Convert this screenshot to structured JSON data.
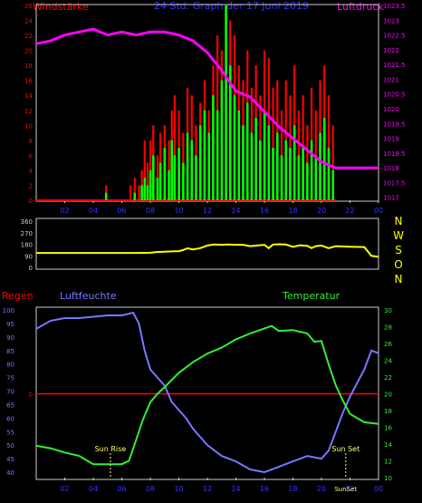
{
  "header": {
    "left_title": "Windstärke",
    "center_title": "24 Std. Graph der 17 Juni 2019",
    "right_title": "Luftdruck"
  },
  "lower_header": {
    "rain_label": "Regen",
    "humidity_label": "Luftfeuchte",
    "temperature_label": "Temperatur"
  },
  "annotations": {
    "sunrise": "Sun Rise",
    "sunset": "Sun Set",
    "sunset_tick": "SunSet"
  },
  "colors": {
    "wind_bar_gust": "#ff0000",
    "wind_bar_avg": "#00ff00",
    "pressure": "#ff00ff",
    "direction": "#ffff00",
    "humidity": "#7777ff",
    "temperature": "#33ee33",
    "rain": "#ff0000",
    "left_axis_text": "#ff0000",
    "right_axis_text": "#ff00ff",
    "humidity_axis_text": "#7777ff",
    "temperature_axis_text": "#33ee33",
    "x_axis_text": "#3333ff",
    "header_center": "#3333ff",
    "compass_text": "#ffff00"
  },
  "chart_data": [
    {
      "type": "bar",
      "name": "wind-and-pressure",
      "x_tick_labels": [
        "02",
        "04",
        "06",
        "08",
        "10",
        "12",
        "14",
        "16",
        "18",
        "20",
        "22",
        "00"
      ],
      "x_range_hours": [
        0,
        24
      ],
      "left_axis": {
        "label": "Windstärke",
        "ticks": [
          0,
          2,
          4,
          6,
          8,
          10,
          12,
          14,
          16,
          18,
          20,
          22,
          24,
          26
        ],
        "range": [
          0,
          26
        ]
      },
      "right_axis": {
        "label": "Luftdruck",
        "ticks": [
          1017,
          1017.5,
          1018,
          1018.5,
          1019,
          1019.5,
          1020,
          1020.5,
          1021,
          1021.5,
          1022,
          1022.5,
          1023,
          1023.5
        ],
        "range": [
          1016.9,
          1023.5
        ]
      },
      "wind_gust": {
        "hours": [
          4.9,
          6.6,
          6.9,
          7.2,
          7.4,
          7.6,
          7.8,
          8.0,
          8.2,
          8.5,
          8.7,
          9.0,
          9.3,
          9.5,
          9.7,
          10.0,
          10.3,
          10.6,
          10.9,
          11.2,
          11.5,
          11.8,
          12.1,
          12.4,
          12.7,
          13.0,
          13.3,
          13.6,
          13.9,
          14.2,
          14.5,
          14.8,
          15.1,
          15.4,
          15.7,
          16.0,
          16.3,
          16.6,
          16.9,
          17.2,
          17.5,
          17.8,
          18.1,
          18.4,
          18.7,
          19.0,
          19.3,
          19.6,
          19.9,
          20.2,
          20.5,
          20.8
        ],
        "values": [
          2,
          2,
          3,
          2,
          4,
          8,
          5,
          8,
          10,
          6,
          9,
          10,
          8,
          12,
          14,
          12,
          9,
          15,
          14,
          10,
          13,
          16,
          12,
          18,
          22,
          20,
          26,
          24,
          22,
          18,
          16,
          20,
          15,
          18,
          14,
          20,
          19,
          15,
          16,
          12,
          16,
          14,
          18,
          12,
          14,
          10,
          15,
          12,
          16,
          18,
          14,
          10
        ]
      },
      "wind_avg": {
        "hours": [
          4.9,
          6.9,
          7.4,
          7.6,
          7.8,
          8.0,
          8.2,
          8.5,
          8.7,
          9.0,
          9.3,
          9.5,
          9.7,
          10.0,
          10.3,
          10.6,
          10.9,
          11.2,
          11.5,
          11.8,
          12.1,
          12.4,
          12.7,
          13.0,
          13.3,
          13.6,
          13.9,
          14.2,
          14.5,
          14.8,
          15.1,
          15.4,
          15.7,
          16.0,
          16.3,
          16.6,
          16.9,
          17.2,
          17.5,
          17.8,
          18.1,
          18.4,
          18.7,
          19.0,
          19.3,
          19.6,
          19.9,
          20.2,
          20.5,
          20.8
        ],
        "values": [
          1,
          1,
          2,
          3,
          2,
          4,
          6,
          3,
          5,
          7,
          4,
          8,
          6,
          7,
          5,
          9,
          8,
          6,
          10,
          12,
          9,
          14,
          12,
          16,
          26,
          18,
          14,
          12,
          10,
          13,
          9,
          11,
          8,
          12,
          10,
          7,
          9,
          6,
          8,
          7,
          10,
          6,
          7,
          5,
          8,
          6,
          9,
          11,
          7,
          4
        ]
      },
      "pressure": {
        "hours": [
          0,
          1,
          2,
          3,
          4,
          5,
          6,
          7,
          8,
          9,
          10,
          11,
          12,
          13,
          14,
          15,
          16,
          17,
          18,
          19,
          20,
          21,
          22,
          23,
          24
        ],
        "values": [
          1022.2,
          1022.3,
          1022.5,
          1022.6,
          1022.7,
          1022.5,
          1022.6,
          1022.5,
          1022.6,
          1022.6,
          1022.5,
          1022.3,
          1021.9,
          1021.3,
          1020.6,
          1020.4,
          1019.9,
          1019.4,
          1019.0,
          1018.6,
          1018.2,
          1018.0,
          1018.0,
          1018.0,
          1018.0
        ]
      }
    },
    {
      "type": "line",
      "name": "wind-direction",
      "left_axis": {
        "ticks": [
          0,
          90,
          180,
          270,
          360
        ],
        "range": [
          0,
          360
        ]
      },
      "compass_labels": [
        "N",
        "W",
        "S",
        "O",
        "N"
      ],
      "hours": [
        0,
        2,
        4,
        6,
        7,
        8,
        8.5,
        9,
        9.5,
        10,
        10.3,
        10.6,
        11,
        11.5,
        12,
        12.5,
        13,
        13.5,
        14,
        14.5,
        15,
        15.5,
        16,
        16.3,
        16.6,
        17,
        17.5,
        18,
        18.5,
        19,
        19.3,
        19.6,
        20,
        20.5,
        21,
        22,
        23,
        23.5,
        24
      ],
      "values": [
        112,
        112,
        112,
        112,
        112,
        114,
        120,
        122,
        124,
        126,
        135,
        148,
        140,
        150,
        170,
        178,
        176,
        178,
        176,
        176,
        165,
        170,
        176,
        150,
        178,
        180,
        178,
        160,
        172,
        168,
        150,
        165,
        170,
        150,
        165,
        160,
        158,
        90,
        82
      ]
    },
    {
      "type": "line",
      "name": "humidity-temperature",
      "left_axis": {
        "label": "Luftfeuchte",
        "ticks": [
          40,
          45,
          50,
          55,
          60,
          65,
          70,
          75,
          80,
          85,
          90,
          95,
          100
        ],
        "range": [
          38,
          100
        ]
      },
      "right_axis": {
        "label": "Temperatur",
        "ticks": [
          10,
          12,
          14,
          16,
          18,
          20,
          22,
          24,
          26,
          28,
          30
        ],
        "range": [
          10,
          30
        ]
      },
      "rain": {
        "label": "Regen",
        "value": 0
      },
      "humidity": {
        "hours": [
          0,
          1,
          2,
          3,
          4,
          5,
          6,
          6.8,
          7.2,
          7.6,
          8,
          8.5,
          9,
          9.5,
          10,
          10.5,
          11,
          12,
          13,
          14,
          15,
          16,
          17,
          18,
          19,
          20,
          20.5,
          21,
          21.5,
          22,
          23,
          23.5,
          24
        ],
        "values": [
          93,
          96,
          97,
          97,
          97.5,
          98,
          98,
          99,
          95,
          85,
          78,
          75,
          72,
          66,
          63,
          60,
          56,
          50,
          46,
          44,
          41,
          40,
          42,
          44,
          46,
          45,
          48,
          55,
          62,
          68,
          78,
          85,
          84
        ]
      },
      "temperature": {
        "hours": [
          0,
          1,
          2,
          3,
          4,
          5,
          6,
          6.5,
          7,
          7.5,
          8,
          8.5,
          9,
          10,
          11,
          12,
          13,
          14,
          15,
          16,
          16.5,
          17,
          18,
          19,
          19.5,
          20,
          20.5,
          21,
          21.5,
          22,
          23,
          24
        ],
        "values": [
          13.8,
          13.5,
          13.0,
          12.6,
          11.6,
          11.6,
          11.6,
          12.0,
          14.5,
          17.0,
          19.0,
          20.0,
          20.8,
          22.5,
          23.8,
          24.8,
          25.5,
          26.5,
          27.2,
          27.8,
          28.1,
          27.5,
          27.6,
          27.2,
          26.2,
          26.3,
          23.5,
          21.0,
          19.2,
          17.6,
          16.6,
          16.4
        ]
      },
      "sunrise_hour": 5.2,
      "sunset_hour": 21.7
    }
  ]
}
